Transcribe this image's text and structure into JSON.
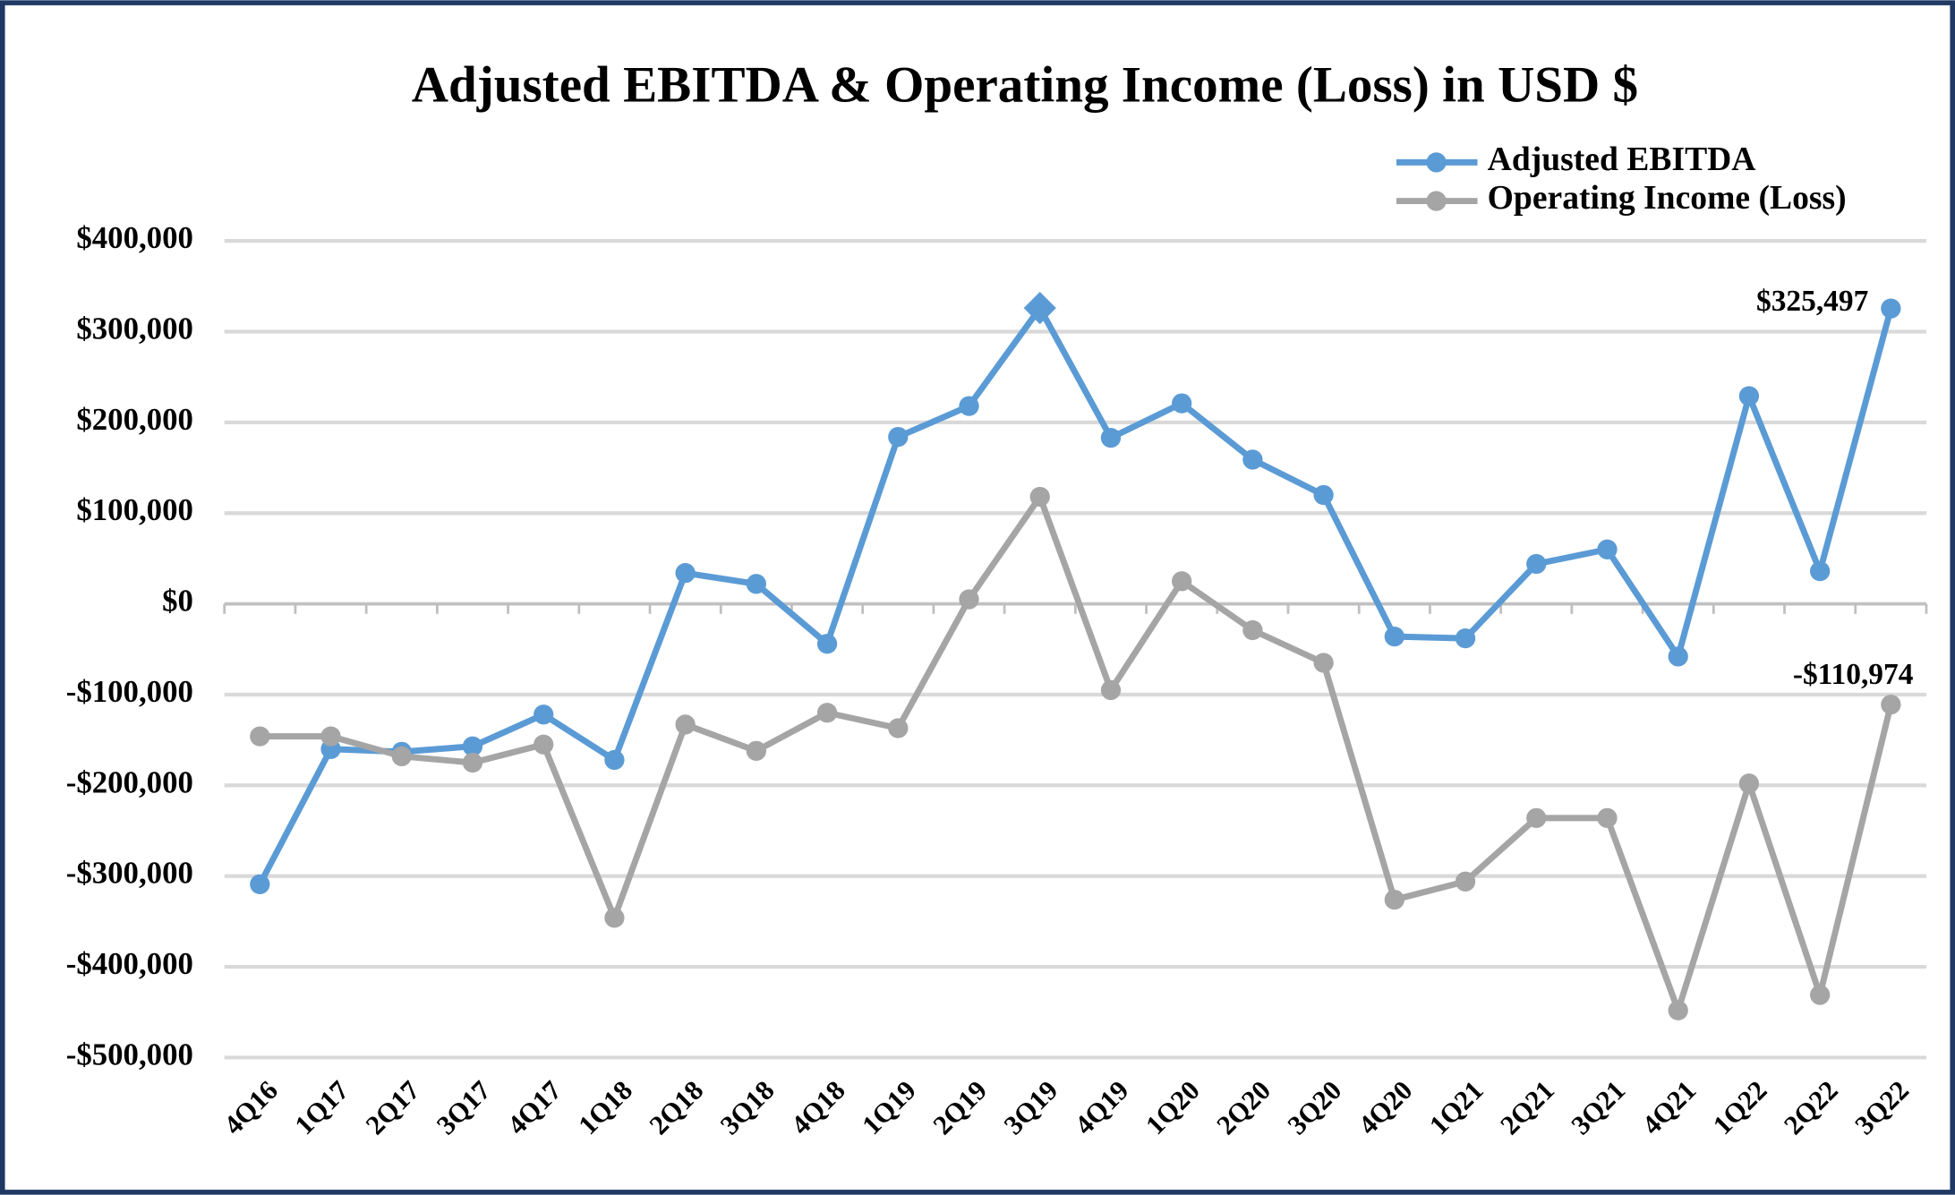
{
  "chart_data": {
    "type": "line",
    "title": "Adjusted EBITDA & Operating Income (Loss) in USD $",
    "categories": [
      "4Q16",
      "1Q17",
      "2Q17",
      "3Q17",
      "4Q17",
      "1Q18",
      "2Q18",
      "3Q18",
      "4Q18",
      "1Q19",
      "2Q19",
      "3Q19",
      "4Q19",
      "1Q20",
      "2Q20",
      "3Q20",
      "4Q20",
      "1Q21",
      "2Q21",
      "3Q21",
      "4Q21",
      "1Q22",
      "2Q22",
      "3Q22"
    ],
    "series": [
      {
        "name": "Adjusted EBITDA",
        "color": "#5b9bd5",
        "marker": "circle",
        "values": [
          -309000,
          -160000,
          -163000,
          -157000,
          -122000,
          -172000,
          34000,
          22000,
          -44000,
          184000,
          218000,
          326000,
          183000,
          221000,
          159000,
          120000,
          -36000,
          -38000,
          44000,
          60000,
          -58000,
          229000,
          36000,
          325497
        ],
        "value_labels": [
          null,
          null,
          null,
          null,
          null,
          null,
          null,
          null,
          null,
          null,
          null,
          null,
          null,
          null,
          null,
          null,
          null,
          null,
          null,
          null,
          null,
          null,
          null,
          "$325,497"
        ]
      },
      {
        "name": "Operating Income (Loss)",
        "color": "#a5a5a5",
        "marker": "circle",
        "values": [
          -146000,
          -146000,
          -168000,
          -175000,
          -155000,
          -346000,
          -133000,
          -162000,
          -120000,
          -137000,
          5000,
          118000,
          -95000,
          25000,
          -29000,
          -65000,
          -326000,
          -306000,
          -236000,
          -236000,
          -448000,
          -198000,
          -431000,
          -110974
        ],
        "value_labels": [
          null,
          null,
          null,
          null,
          null,
          null,
          null,
          null,
          null,
          null,
          null,
          null,
          null,
          null,
          null,
          null,
          null,
          null,
          null,
          null,
          null,
          null,
          null,
          "-$110,974"
        ]
      }
    ],
    "highlight": {
      "series": "Adjusted EBITDA",
      "category": "3Q19",
      "marker": "diamond"
    },
    "ylim": [
      -500000,
      400000
    ],
    "yticks": [
      {
        "value": -500000,
        "label": "-$500,000"
      },
      {
        "value": -400000,
        "label": "-$400,000"
      },
      {
        "value": -300000,
        "label": "-$300,000"
      },
      {
        "value": -200000,
        "label": "-$200,000"
      },
      {
        "value": -100000,
        "label": "-$100,000"
      },
      {
        "value": 0,
        "label": "$0"
      },
      {
        "value": 100000,
        "label": "$100,000"
      },
      {
        "value": 200000,
        "label": "$200,000"
      },
      {
        "value": 300000,
        "label": "$300,000"
      },
      {
        "value": 400000,
        "label": "$400,000"
      }
    ],
    "grid": true,
    "legend": "top-right"
  }
}
